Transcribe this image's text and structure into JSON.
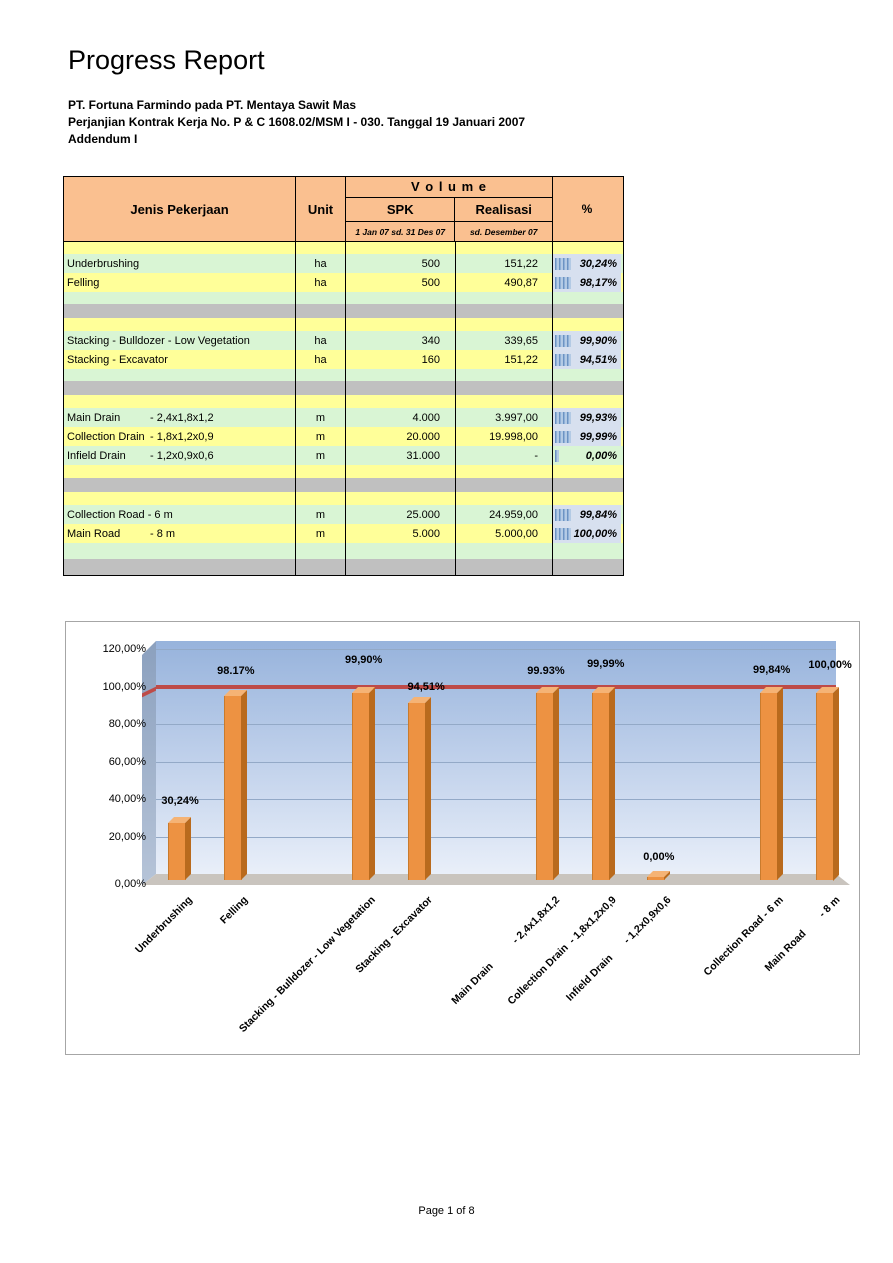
{
  "page": {
    "title": "Progress Report",
    "subtitle_line1": "PT. Fortuna Farmindo pada PT. Mentaya Sawit Mas",
    "subtitle_line2": "Perjanjian Kontrak Kerja No. P & C 1608.02/MSM I - 030. Tanggal 19 Januari 2007",
    "subtitle_line3": "Addendum I",
    "footer": "Page 1 of 8"
  },
  "table": {
    "header": {
      "jenis": "Jenis Pekerjaan",
      "unit": "Unit",
      "volume": "V o l u m e",
      "spk": "SPK",
      "spk_sub": "1 Jan 07 sd. 31 Des 07",
      "realisasi": "Realisasi",
      "realisasi_sub": "sd. Desember 07",
      "pct": "%"
    },
    "rows": [
      {
        "kind": "spacer",
        "bg": "yellow",
        "h": 12
      },
      {
        "kind": "data",
        "bg": "green",
        "name": "Underbrushing",
        "dim": "",
        "unit": "ha",
        "spk": "500",
        "real": "151,22",
        "pct": "30,24%",
        "pv": 30.24
      },
      {
        "kind": "data",
        "bg": "yellow",
        "name": "Felling",
        "dim": "",
        "unit": "ha",
        "spk": "500",
        "real": "490,87",
        "pct": "98,17%",
        "pv": 98.17
      },
      {
        "kind": "spacer",
        "bg": "green",
        "h": 12
      },
      {
        "kind": "spacer",
        "bg": "gray",
        "h": 14
      },
      {
        "kind": "spacer",
        "bg": "yellow",
        "h": 13
      },
      {
        "kind": "data",
        "bg": "green",
        "name": "Stacking - Bulldozer - Low Vegetation",
        "dim": "",
        "unit": "ha",
        "spk": "340",
        "real": "339,65",
        "pct": "99,90%",
        "pv": 99.9
      },
      {
        "kind": "data",
        "bg": "yellow",
        "name": "Stacking - Excavator",
        "dim": "",
        "unit": "ha",
        "spk": "160",
        "real": "151,22",
        "pct": "94,51%",
        "pv": 94.51
      },
      {
        "kind": "spacer",
        "bg": "green",
        "h": 12
      },
      {
        "kind": "spacer",
        "bg": "gray",
        "h": 14
      },
      {
        "kind": "spacer",
        "bg": "yellow",
        "h": 13
      },
      {
        "kind": "data",
        "bg": "green",
        "name": "Main Drain",
        "dim": "- 2,4x1,8x1,2",
        "unit": "m",
        "spk": "4.000",
        "real": "3.997,00",
        "pct": "99,93%",
        "pv": 99.93
      },
      {
        "kind": "data",
        "bg": "yellow",
        "name": "Collection Drain",
        "dim": "- 1,8x1,2x0,9",
        "unit": "m",
        "spk": "20.000",
        "real": "19.998,00",
        "pct": "99,99%",
        "pv": 99.99
      },
      {
        "kind": "data",
        "bg": "green",
        "name": "Infield Drain",
        "dim": "- 1,2x0,9x0,6",
        "unit": "m",
        "spk": "31.000",
        "real": "-",
        "pct": "0,00%",
        "pv": 0
      },
      {
        "kind": "spacer",
        "bg": "yellow",
        "h": 13
      },
      {
        "kind": "spacer",
        "bg": "gray",
        "h": 14
      },
      {
        "kind": "spacer",
        "bg": "yellow",
        "h": 13
      },
      {
        "kind": "data",
        "bg": "green",
        "name": "Collection Road - 6 m",
        "dim": "",
        "unit": "m",
        "spk": "25.000",
        "real": "24.959,00",
        "pct": "99,84%",
        "pv": 99.84
      },
      {
        "kind": "data",
        "bg": "yellow",
        "name": "Main Road",
        "dim": "- 8 m",
        "unit": "m",
        "spk": "5.000",
        "real": "5.000,00",
        "pct": "100,00%",
        "pv": 100
      },
      {
        "kind": "spacer",
        "bg": "green",
        "h": 16
      },
      {
        "kind": "spacer",
        "bg": "gray",
        "h": 16
      }
    ]
  },
  "chart_data": {
    "type": "bar",
    "title": "",
    "categories": [
      "Underbrushing",
      "Felling",
      "Stacking - Bulldozer - Low Vegetation",
      "Stacking - Excavator",
      "Main Drain           - 2,4x1,8x1,2",
      "Collection Drain  - 1,8x1,2x0,9",
      "Infield Drain       - 1,2x0,9x0,6",
      "Collection Road - 6 m",
      "Main Road        - 8 m"
    ],
    "values": [
      30.24,
      98.17,
      99.9,
      94.51,
      99.93,
      99.99,
      0,
      99.84,
      100
    ],
    "data_labels": [
      "30,24%",
      "98.17%",
      "99,90%",
      "94,51%",
      "99.93%",
      "99,99%",
      "0,00%",
      "99,84%",
      "100,00%"
    ],
    "y_ticks": [
      {
        "v": 120,
        "label": "120,00%"
      },
      {
        "v": 100,
        "label": "100,00%"
      },
      {
        "v": 80,
        "label": "80,00%"
      },
      {
        "v": 60,
        "label": "60,00%"
      },
      {
        "v": 40,
        "label": "40,00%"
      },
      {
        "v": 20,
        "label": "20,00%"
      },
      {
        "v": 0,
        "label": "0,00%"
      }
    ],
    "ylim": [
      0,
      120
    ],
    "target_line": 100,
    "grid": true,
    "legend": "none",
    "bar_color": "#ED9242",
    "bar_side_color": "#B96A1D",
    "bar_top_color": "#F5B375",
    "target_color": "#BE4B48"
  },
  "colors": {
    "header_bg": "#FAC090",
    "row_green": "#D9F5D4",
    "row_yellow": "#FFFF99",
    "row_gray": "#C0C0C0",
    "pct_cell_bg": "#D7E0EF",
    "pct_bar_blue": "#5B84B8"
  }
}
